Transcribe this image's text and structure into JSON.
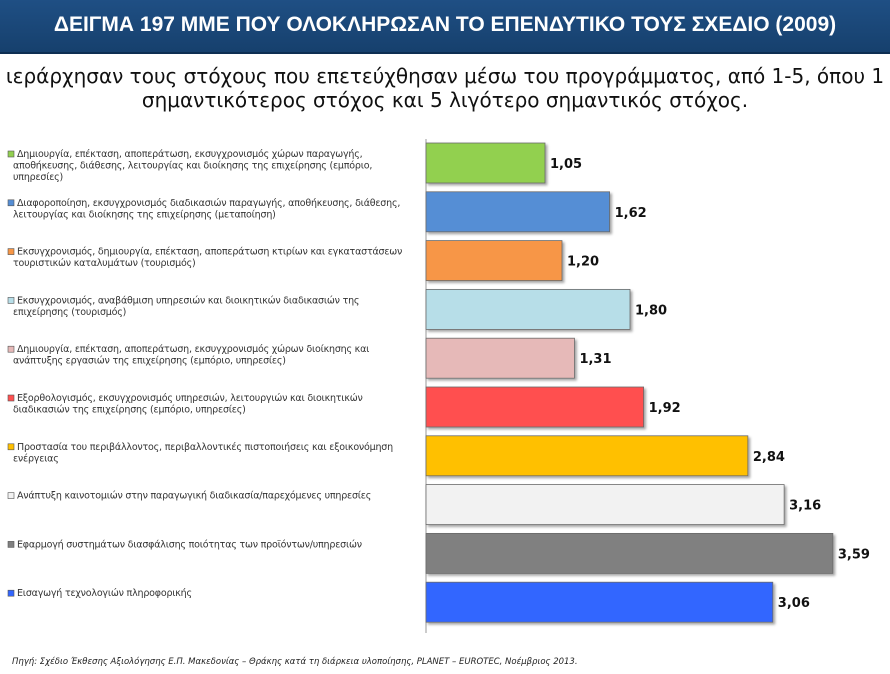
{
  "header": {
    "title": "ΔΕΙΓΜΑ 197 ΜΜΕ ΠΟΥ ΟΛΟΚΛΗΡΩΣΑΝ ΤΟ ΕΠΕΝΔΥΤΙΚΟ ΤΟΥΣ ΣΧΕΔΙΟ (2009)",
    "subtitle_line1": "ιεράρχησαν τους στόχους που επετεύχθησαν μέσω του προγράμματος, από 1-5, όπου 1",
    "subtitle_line2": "σημαντικότερος στόχος και 5 λιγότερο σημαντικός στόχος."
  },
  "footer": {
    "source": "Πηγή: Σχέδιο Έκθεσης Αξιολόγησης Ε.Π. Μακεδονίας – Θράκης κατά τη διάρκεια υλοποίησης, PLANET – EUROTEC, Νοέμβριος 2013."
  },
  "chart_data": {
    "type": "bar",
    "orientation": "horizontal",
    "title": "",
    "xlabel": "",
    "ylabel": "",
    "grid": false,
    "legend": "none",
    "xlim": [
      0,
      3.75
    ],
    "categories": [
      "Δημιουργία, επέκταση, αποπεράτωση, εκσυγχρονισμός χώρων παραγωγής, αποθήκευσης, διάθεσης, λειτουργίας και διοίκησης της επιχείρησης (εμπόριο, υπηρεσίες)",
      "Διαφοροποίηση, εκσυγχρονισμός διαδικασιών παραγωγής, αποθήκευσης, διάθεσης, λειτουργίας και διοίκησης της επιχείρησης (μεταποίηση)",
      "Εκσυγχρονισμός, δημιουργία, επέκταση, αποπεράτωση κτιρίων και εγκαταστάσεων τουριστικών καταλυμάτων (τουρισμός)",
      "Εκσυγχρονισμός, αναβάθμιση υπηρεσιών και διοικητικών διαδικασιών της επιχείρησης (τουρισμός)",
      "Δημιουργία, επέκταση, αποπεράτωση, εκσυγχρονισμός χώρων διοίκησης και ανάπτυξης εργασιών της επιχείρησης (εμπόριο, υπηρεσίες)",
      "Εξορθολογισμός, εκσυγχρονισμός υπηρεσιών, λειτουργιών και διοικητικών διαδικασιών της επιχείρησης (εμπόριο, υπηρεσίες)",
      "Προστασία του περιβάλλοντος, περιβαλλοντικές πιστοποιήσεις και εξοικονόμηση ενέργειας",
      "Ανάπτυξη καινοτομιών στην παραγωγική διαδικασία/παρεχόμενες υπηρεσίες",
      "Εφαρμογή συστημάτων διασφάλισης ποιότητας των προϊόντων/υπηρεσιών",
      "Εισαγωγή τεχνολογιών πληροφορικής"
    ],
    "values": [
      1.05,
      1.62,
      1.2,
      1.8,
      1.31,
      1.92,
      2.84,
      3.16,
      3.59,
      3.06
    ],
    "value_labels": [
      "1,05",
      "1,62",
      "1,20",
      "1,80",
      "1,31",
      "1,92",
      "2,84",
      "3,16",
      "3,59",
      "3,06"
    ],
    "colors": [
      "#92d050",
      "#558ed5",
      "#f79646",
      "#b7dee8",
      "#e6b9b8",
      "#ff5050",
      "#ffc000",
      "#f2f2f2",
      "#808080",
      "#3366ff"
    ]
  }
}
